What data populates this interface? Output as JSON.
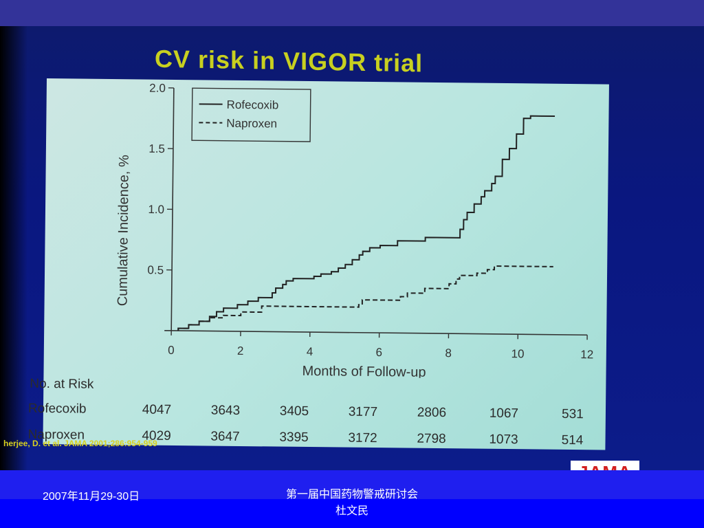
{
  "slide": {
    "title": "CV risk in VIGOR trial",
    "citation": "herjee, D. et al. JAMA 2001;286:954-959",
    "logo_text": "JAMA"
  },
  "footer": {
    "date": "2007年11月29-30日",
    "event_line1": "第一届中国药物警戒研讨会",
    "event_line2": "杜文民"
  },
  "colors": {
    "top_bar": "#333399",
    "footer": "#0000FF",
    "panel": "#B9E6E0",
    "title": "#C8D020",
    "logo_red": "#D21F1F"
  },
  "chart_data": {
    "type": "line",
    "title": "",
    "xlabel": "Months of Follow-up",
    "ylabel": "Cumulative Incidence, %",
    "xlim": [
      0,
      12
    ],
    "ylim": [
      0,
      2.0
    ],
    "xticks": [
      0,
      2,
      4,
      6,
      8,
      10,
      12
    ],
    "xtick_labels": [
      "0",
      "2",
      "4",
      "6",
      "8",
      "10",
      "12"
    ],
    "yticks": [
      0.5,
      1.0,
      1.5,
      2.0
    ],
    "ytick_labels": [
      "0.5",
      "1.0",
      "1.5",
      "2.0"
    ],
    "legend_position": "top-left",
    "step": true,
    "series": [
      {
        "name": "Rofecoxib",
        "style": "solid",
        "x": [
          0.2,
          0.5,
          0.8,
          1.1,
          1.3,
          1.5,
          1.9,
          2.2,
          2.5,
          2.9,
          3.0,
          3.2,
          3.3,
          3.5,
          4.1,
          4.3,
          4.6,
          4.8,
          5.0,
          5.2,
          5.4,
          5.5,
          5.7,
          6.0,
          6.5,
          7.3,
          8.3,
          8.4,
          8.5,
          8.7,
          8.9,
          9.0,
          9.2,
          9.3,
          9.5,
          9.7,
          9.9,
          10.1,
          10.3,
          10.6,
          11.0
        ],
        "y": [
          0.02,
          0.05,
          0.08,
          0.12,
          0.16,
          0.19,
          0.22,
          0.25,
          0.28,
          0.32,
          0.36,
          0.39,
          0.42,
          0.44,
          0.46,
          0.48,
          0.5,
          0.53,
          0.56,
          0.6,
          0.64,
          0.67,
          0.7,
          0.72,
          0.76,
          0.79,
          0.86,
          0.94,
          1.0,
          1.07,
          1.13,
          1.18,
          1.24,
          1.3,
          1.44,
          1.53,
          1.65,
          1.78,
          1.8,
          1.8,
          1.8
        ]
      },
      {
        "name": "Naproxen",
        "style": "dashed",
        "x": [
          0.2,
          0.5,
          0.8,
          1.1,
          1.5,
          2.0,
          2.6,
          5.4,
          5.5,
          6.6,
          6.8,
          7.3,
          8.0,
          8.2,
          8.3,
          8.8,
          9.1,
          9.3,
          11.0
        ],
        "y": [
          0.02,
          0.05,
          0.08,
          0.11,
          0.13,
          0.16,
          0.21,
          0.23,
          0.27,
          0.3,
          0.33,
          0.37,
          0.41,
          0.45,
          0.48,
          0.5,
          0.53,
          0.56,
          0.56
        ]
      }
    ],
    "risk_table": {
      "heading": "No. at Risk",
      "rows": [
        {
          "label": "Rofecoxib",
          "values": [
            "4047",
            "3643",
            "3405",
            "3177",
            "2806",
            "1067",
            "531"
          ]
        },
        {
          "label": "Naproxen",
          "values": [
            "4029",
            "3647",
            "3395",
            "3172",
            "2798",
            "1073",
            "514"
          ]
        }
      ]
    }
  }
}
